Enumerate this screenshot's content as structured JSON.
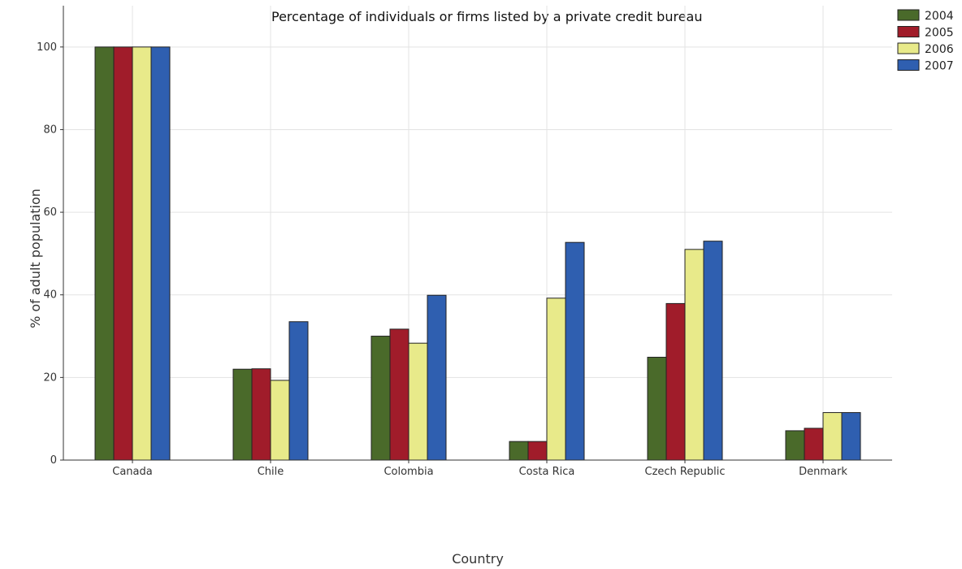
{
  "chart_data": {
    "type": "bar",
    "title": "Percentage of individuals or firms listed by a private credit bureau",
    "xlabel": "Country",
    "ylabel": "% of adult population",
    "categories": [
      "Canada",
      "Chile",
      "Colombia",
      "Costa Rica",
      "Czech Republic",
      "Denmark"
    ],
    "series": [
      {
        "name": "2004",
        "color": "#4a6a2a",
        "values": [
          100,
          22.0,
          30.0,
          4.5,
          24.9,
          7.1
        ]
      },
      {
        "name": "2005",
        "color": "#a01c2a",
        "values": [
          100,
          22.1,
          31.7,
          4.5,
          37.9,
          7.7
        ]
      },
      {
        "name": "2006",
        "color": "#e8ea8a",
        "values": [
          100,
          19.3,
          28.3,
          39.2,
          51.0,
          11.5
        ]
      },
      {
        "name": "2007",
        "color": "#2f5fb0",
        "values": [
          100,
          33.5,
          39.9,
          52.7,
          53.0,
          11.5
        ]
      }
    ],
    "ylim": [
      0,
      110
    ],
    "yticks": [
      0,
      20,
      40,
      60,
      80,
      100
    ],
    "grid": true,
    "legend_position": "top-right"
  }
}
